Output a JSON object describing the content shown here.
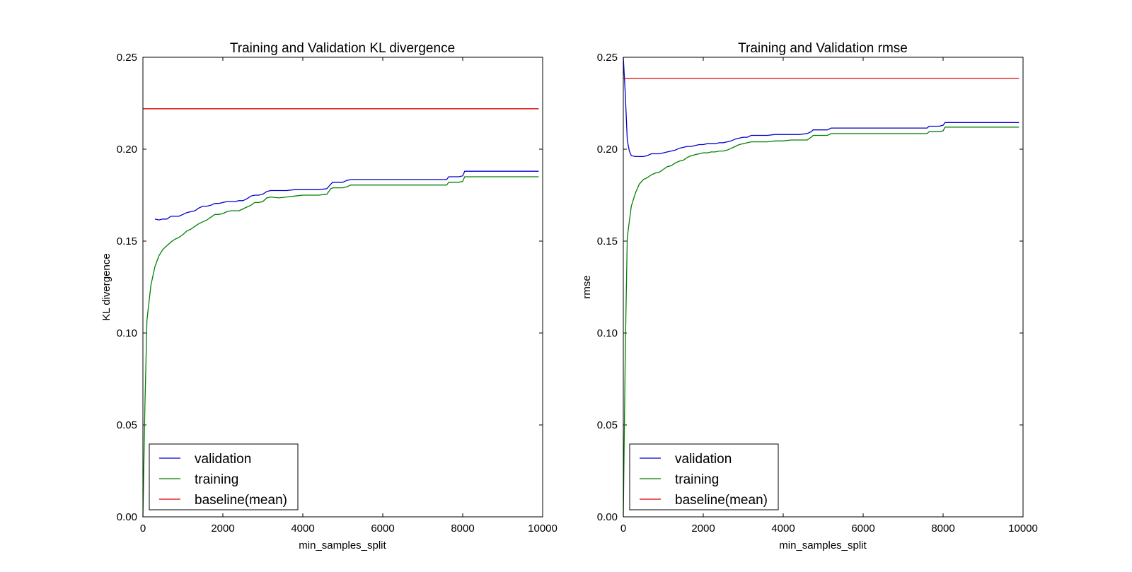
{
  "chart_data": [
    {
      "type": "line",
      "title": "Training and Validation KL divergence",
      "xlabel": "min_samples_split",
      "ylabel": "KL divergence",
      "xlim": [
        0,
        10000
      ],
      "ylim": [
        0,
        0.25
      ],
      "xticks": [
        0,
        2000,
        4000,
        6000,
        8000,
        10000
      ],
      "xtick_labels": [
        "0",
        "2000",
        "4000",
        "6000",
        "8000",
        "10000"
      ],
      "yticks": [
        0,
        0.05,
        0.1,
        0.15,
        0.2,
        0.25
      ],
      "ytick_labels": [
        "0.00",
        "0.05",
        "0.10",
        "0.15",
        "0.20",
        "0.25"
      ],
      "grid": false,
      "legend_position": "lower-left",
      "series": [
        {
          "name": "validation",
          "color": "#0000cc",
          "x": [
            300,
            400,
            500,
            600,
            700,
            800,
            900,
            1000,
            1100,
            1200,
            1300,
            1400,
            1500,
            1600,
            1700,
            1800,
            1900,
            2000,
            2100,
            2200,
            2300,
            2400,
            2500,
            2600,
            2700,
            2800,
            2900,
            3000,
            3100,
            3200,
            3400,
            3600,
            3800,
            4000,
            4200,
            4400,
            4600,
            4700,
            4750,
            5000,
            5100,
            5200,
            5500,
            6000,
            6500,
            7000,
            7500,
            7600,
            7650,
            7900,
            8000,
            8050,
            8500,
            9000,
            9500,
            9900
          ],
          "y": [
            0.162,
            0.1615,
            0.162,
            0.162,
            0.1635,
            0.1635,
            0.1635,
            0.1645,
            0.1655,
            0.166,
            0.1665,
            0.168,
            0.169,
            0.169,
            0.1695,
            0.1705,
            0.1705,
            0.171,
            0.1715,
            0.1715,
            0.1715,
            0.172,
            0.172,
            0.173,
            0.1745,
            0.175,
            0.175,
            0.1755,
            0.177,
            0.1775,
            0.1775,
            0.1775,
            0.178,
            0.178,
            0.178,
            0.178,
            0.1785,
            0.181,
            0.182,
            0.182,
            0.183,
            0.1835,
            0.1835,
            0.1835,
            0.1835,
            0.1835,
            0.1835,
            0.1835,
            0.185,
            0.185,
            0.1855,
            0.188,
            0.188,
            0.188,
            0.188,
            0.188
          ]
        },
        {
          "name": "training",
          "color": "#008000",
          "x": [
            0,
            50,
            100,
            200,
            300,
            400,
            500,
            600,
            700,
            800,
            900,
            1000,
            1100,
            1200,
            1300,
            1400,
            1500,
            1600,
            1700,
            1800,
            1900,
            2000,
            2100,
            2200,
            2300,
            2400,
            2500,
            2600,
            2700,
            2800,
            2900,
            3000,
            3100,
            3200,
            3400,
            3600,
            3800,
            4000,
            4200,
            4400,
            4600,
            4700,
            4750,
            5000,
            5100,
            5200,
            5500,
            6000,
            6500,
            7000,
            7500,
            7600,
            7650,
            7900,
            8000,
            8050,
            8500,
            9000,
            9500,
            9900
          ],
          "y": [
            0.0,
            0.06,
            0.107,
            0.126,
            0.136,
            0.142,
            0.1455,
            0.1475,
            0.1495,
            0.151,
            0.152,
            0.1535,
            0.1555,
            0.1565,
            0.158,
            0.1595,
            0.1605,
            0.1615,
            0.163,
            0.1645,
            0.1645,
            0.165,
            0.166,
            0.1665,
            0.1665,
            0.1665,
            0.1675,
            0.1685,
            0.1695,
            0.171,
            0.171,
            0.1715,
            0.1735,
            0.174,
            0.1735,
            0.174,
            0.1745,
            0.175,
            0.175,
            0.175,
            0.1755,
            0.1785,
            0.179,
            0.179,
            0.1795,
            0.1805,
            0.1805,
            0.1805,
            0.1805,
            0.1805,
            0.1805,
            0.1805,
            0.182,
            0.182,
            0.1825,
            0.185,
            0.185,
            0.185,
            0.185,
            0.185
          ]
        },
        {
          "name": "baseline(mean)",
          "color": "#dd0000",
          "x": [
            0,
            9900
          ],
          "y": [
            0.222,
            0.222
          ]
        }
      ]
    },
    {
      "type": "line",
      "title": "Training and Validation rmse",
      "xlabel": "min_samples_split",
      "ylabel": "rmse",
      "xlim": [
        0,
        10000
      ],
      "ylim": [
        0,
        0.25
      ],
      "xticks": [
        0,
        2000,
        4000,
        6000,
        8000,
        10000
      ],
      "xtick_labels": [
        "0",
        "2000",
        "4000",
        "6000",
        "8000",
        "10000"
      ],
      "yticks": [
        0,
        0.05,
        0.1,
        0.15,
        0.2,
        0.25
      ],
      "ytick_labels": [
        "0.00",
        "0.05",
        "0.10",
        "0.15",
        "0.20",
        "0.25"
      ],
      "grid": false,
      "legend_position": "lower-left",
      "series": [
        {
          "name": "validation",
          "color": "#0000cc",
          "x": [
            0,
            50,
            100,
            150,
            200,
            300,
            400,
            500,
            600,
            700,
            800,
            900,
            1000,
            1100,
            1200,
            1300,
            1400,
            1500,
            1600,
            1700,
            1800,
            1900,
            2000,
            2100,
            2200,
            2300,
            2400,
            2500,
            2600,
            2700,
            2800,
            2900,
            3000,
            3100,
            3200,
            3400,
            3600,
            3800,
            4000,
            4200,
            4400,
            4600,
            4700,
            4750,
            5000,
            5100,
            5200,
            5500,
            6000,
            6500,
            7000,
            7500,
            7600,
            7650,
            7900,
            8000,
            8050,
            8500,
            9000,
            9500,
            9900
          ],
          "y": [
            0.25,
            0.23,
            0.205,
            0.199,
            0.1965,
            0.196,
            0.196,
            0.196,
            0.1965,
            0.1975,
            0.1975,
            0.1975,
            0.198,
            0.1985,
            0.199,
            0.1995,
            0.2005,
            0.201,
            0.2015,
            0.2015,
            0.202,
            0.2025,
            0.2025,
            0.203,
            0.203,
            0.203,
            0.2035,
            0.2035,
            0.204,
            0.2045,
            0.2055,
            0.206,
            0.2065,
            0.2065,
            0.2075,
            0.2075,
            0.2075,
            0.208,
            0.208,
            0.208,
            0.208,
            0.2085,
            0.2095,
            0.2105,
            0.2105,
            0.2105,
            0.2115,
            0.2115,
            0.2115,
            0.2115,
            0.2115,
            0.2115,
            0.2115,
            0.2125,
            0.2125,
            0.213,
            0.2145,
            0.2145,
            0.2145,
            0.2145,
            0.2145
          ]
        },
        {
          "name": "training",
          "color": "#008000",
          "x": [
            0,
            50,
            100,
            200,
            300,
            400,
            500,
            600,
            700,
            800,
            900,
            1000,
            1100,
            1200,
            1300,
            1400,
            1500,
            1600,
            1700,
            1800,
            1900,
            2000,
            2100,
            2200,
            2300,
            2400,
            2500,
            2600,
            2700,
            2800,
            2900,
            3000,
            3100,
            3200,
            3400,
            3600,
            3800,
            4000,
            4200,
            4400,
            4600,
            4700,
            4750,
            5000,
            5100,
            5200,
            5500,
            6000,
            6500,
            7000,
            7500,
            7600,
            7650,
            7900,
            8000,
            8050,
            8500,
            9000,
            9500,
            9900
          ],
          "y": [
            0.0,
            0.09,
            0.152,
            0.169,
            0.176,
            0.181,
            0.1835,
            0.1845,
            0.186,
            0.187,
            0.1875,
            0.189,
            0.1905,
            0.191,
            0.1925,
            0.1935,
            0.194,
            0.1955,
            0.1965,
            0.197,
            0.1975,
            0.198,
            0.198,
            0.1985,
            0.1985,
            0.199,
            0.199,
            0.1995,
            0.2005,
            0.2015,
            0.2025,
            0.203,
            0.2035,
            0.204,
            0.204,
            0.204,
            0.2045,
            0.2045,
            0.205,
            0.205,
            0.205,
            0.2065,
            0.2075,
            0.2075,
            0.2075,
            0.2085,
            0.2085,
            0.2085,
            0.2085,
            0.2085,
            0.2085,
            0.2085,
            0.2095,
            0.2095,
            0.21,
            0.212,
            0.212,
            0.212,
            0.212,
            0.212
          ]
        },
        {
          "name": "baseline(mean)",
          "color": "#dd0000",
          "x": [
            0,
            9900
          ],
          "y": [
            0.2385,
            0.2385
          ]
        }
      ]
    }
  ]
}
